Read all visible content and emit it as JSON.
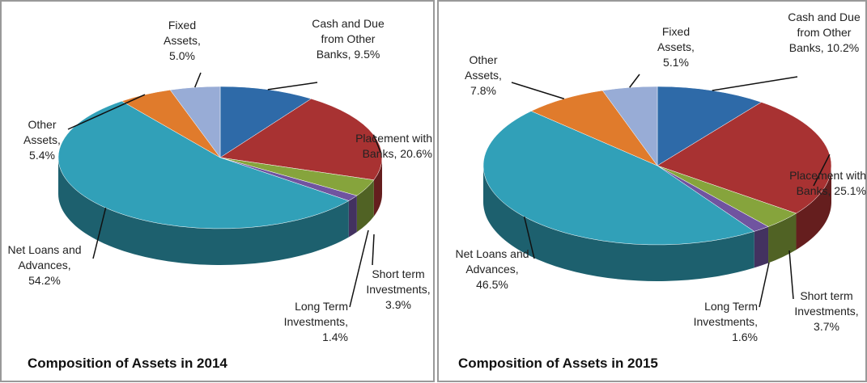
{
  "chart_data": [
    {
      "type": "pie3d",
      "title": "Composition of Assets in 2014",
      "categories": [
        "Cash and Due from Other Banks,",
        "Placement with Banks,",
        "Short term Investments,",
        "Long Term Investments,",
        "Net Loans and Advances,",
        "Other Assets,",
        "Fixed Assets,"
      ],
      "values": [
        9.5,
        20.6,
        3.9,
        1.4,
        54.2,
        5.4,
        5.0
      ],
      "value_labels": [
        "9.5%",
        "20.6%",
        "3.9%",
        "1.4%",
        "54.2%",
        "5.4%",
        "5.0%"
      ],
      "colors": [
        "#2e6aa8",
        "#a83232",
        "#86a43c",
        "#7054a0",
        "#31a0b8",
        "#e07b2c",
        "#98acd6"
      ]
    },
    {
      "type": "pie3d",
      "title": "Composition of Assets in 2015",
      "categories": [
        "Cash and Due from Other Banks,",
        "Placement with Banks,",
        "Short term Investments,",
        "Long Term Investments,",
        "Net Loans and Advances,",
        "Other Assets,",
        "Fixed Assets,"
      ],
      "values": [
        10.2,
        25.1,
        3.7,
        1.6,
        46.5,
        7.8,
        5.1
      ],
      "value_labels": [
        "10.2%",
        "25.1%",
        "3.7%",
        "1.6%",
        "46.5%",
        "7.8%",
        "5.1%"
      ],
      "colors": [
        "#2e6aa8",
        "#a83232",
        "#86a43c",
        "#7054a0",
        "#31a0b8",
        "#e07b2c",
        "#98acd6"
      ]
    }
  ]
}
